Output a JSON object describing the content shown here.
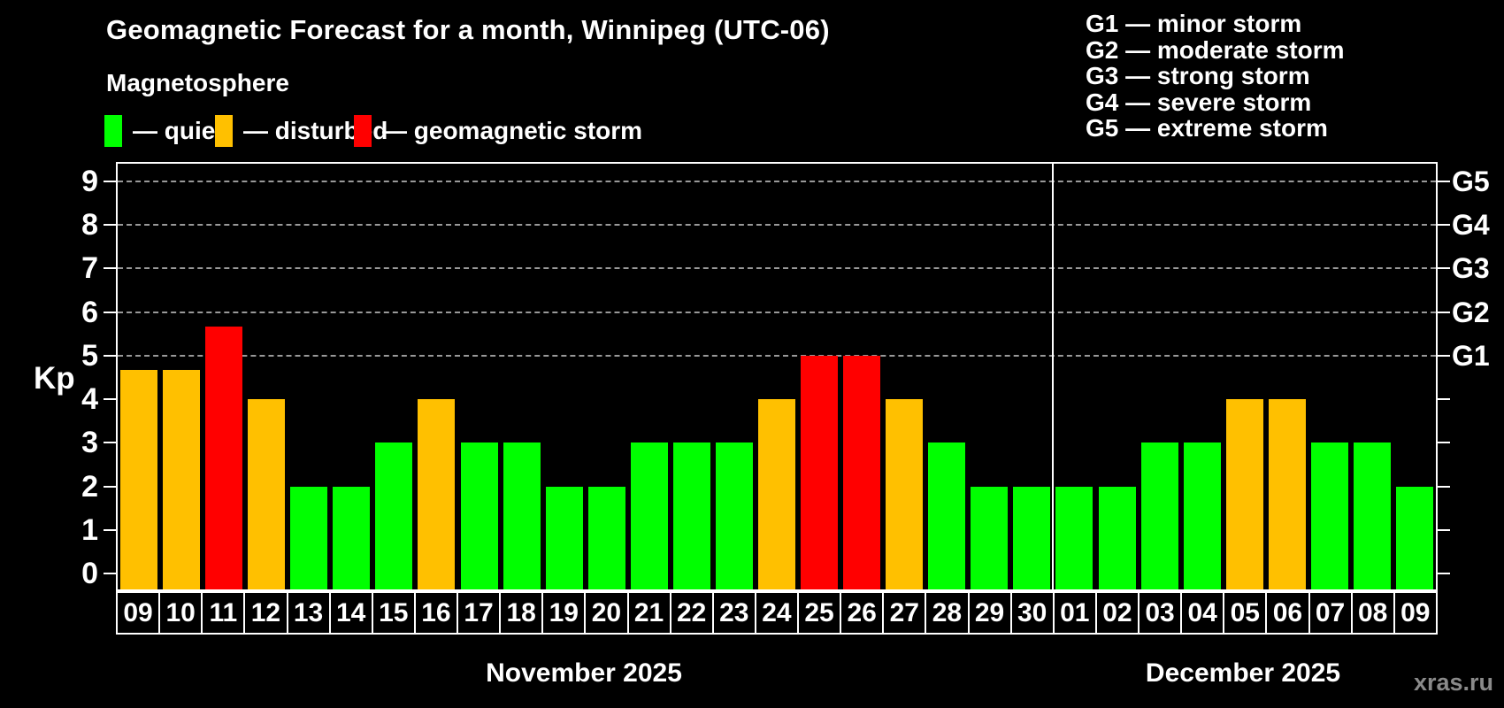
{
  "watermark": "xras.ru",
  "chart_data": {
    "type": "bar",
    "title": "Geomagnetic Forecast for a month, Winnipeg (UTC-06)",
    "subtitle": "Magnetosphere",
    "ylabel": "Kp",
    "ylim": [
      -0.36,
      9.4
    ],
    "y_ticks": [
      0,
      1,
      2,
      3,
      4,
      5,
      6,
      7,
      8,
      9
    ],
    "gridlines_at": [
      5,
      6,
      7,
      8,
      9
    ],
    "grid": "dashed horizontal lines at Kp 5-9 only",
    "legend_position": "top-left above plot",
    "legend": [
      {
        "status": "quiet",
        "label": "— quiet",
        "color": "#00ff00"
      },
      {
        "status": "disturbed",
        "label": "— disturbed",
        "color": "#ffc000"
      },
      {
        "status": "storm",
        "label": "— geomagnetic storm",
        "color": "#ff0000"
      }
    ],
    "g_levels": [
      {
        "label": "G1",
        "kp": 5,
        "legend": "G1 — minor storm"
      },
      {
        "label": "G2",
        "kp": 6,
        "legend": "G2 — moderate storm"
      },
      {
        "label": "G3",
        "kp": 7,
        "legend": "G3 — strong storm"
      },
      {
        "label": "G4",
        "kp": 8,
        "legend": "G4 — severe storm"
      },
      {
        "label": "G5",
        "kp": 9,
        "legend": "G5 — extreme storm"
      }
    ],
    "months": [
      {
        "label": "November 2025",
        "days": 22
      },
      {
        "label": "December 2025",
        "days": 9
      }
    ],
    "categories": [
      "09",
      "10",
      "11",
      "12",
      "13",
      "14",
      "15",
      "16",
      "17",
      "18",
      "19",
      "20",
      "21",
      "22",
      "23",
      "24",
      "25",
      "26",
      "27",
      "28",
      "29",
      "30",
      "01",
      "02",
      "03",
      "04",
      "05",
      "06",
      "07",
      "08",
      "09"
    ],
    "values": [
      4.67,
      4.67,
      5.67,
      4,
      2,
      2,
      3,
      4,
      3,
      3,
      2,
      2,
      3,
      3,
      3,
      4,
      5,
      5,
      4,
      3,
      2,
      2,
      2,
      2,
      3,
      3,
      4,
      4,
      3,
      3,
      2
    ],
    "statuses": [
      "disturbed",
      "disturbed",
      "storm",
      "disturbed",
      "quiet",
      "quiet",
      "quiet",
      "disturbed",
      "quiet",
      "quiet",
      "quiet",
      "quiet",
      "quiet",
      "quiet",
      "quiet",
      "disturbed",
      "storm",
      "storm",
      "disturbed",
      "quiet",
      "quiet",
      "quiet",
      "quiet",
      "quiet",
      "quiet",
      "quiet",
      "disturbed",
      "disturbed",
      "quiet",
      "quiet",
      "quiet"
    ],
    "status_colors": {
      "quiet": "#00ff00",
      "disturbed": "#ffc000",
      "storm": "#ff0000"
    }
  }
}
